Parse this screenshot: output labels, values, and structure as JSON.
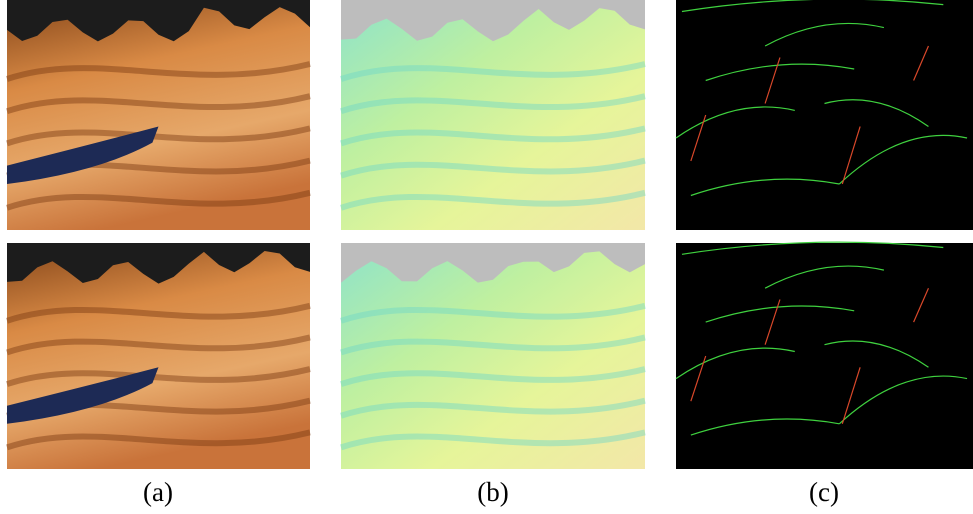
{
  "figure": {
    "captions": [
      "(a)",
      "(b)",
      "(c)"
    ]
  }
}
